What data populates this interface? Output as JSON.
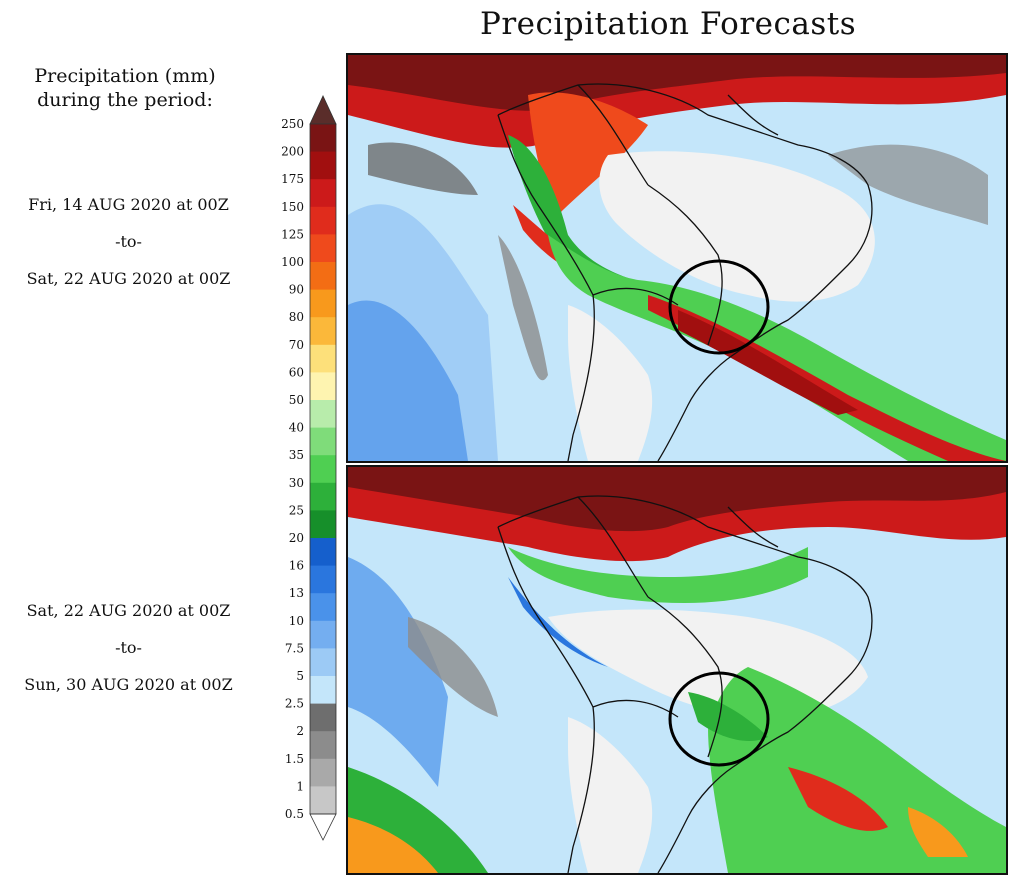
{
  "title": "Precipitation Forecasts",
  "legend": {
    "title_line1": "Precipitation (mm)",
    "title_line2": "during the period:",
    "levels": [
      "250",
      "200",
      "175",
      "150",
      "125",
      "100",
      "90",
      "80",
      "70",
      "60",
      "50",
      "40",
      "35",
      "30",
      "25",
      "20",
      "16",
      "13",
      "10",
      "7.5",
      "5",
      "2.5",
      "2",
      "1.5",
      "1",
      "0.5"
    ],
    "colors": [
      "#5a2d2a",
      "#7a1414",
      "#a10f0f",
      "#cc1a1a",
      "#e02c1c",
      "#ef4a1c",
      "#f36d14",
      "#f8991c",
      "#fbb83a",
      "#fde07a",
      "#fef4b0",
      "#b8ecab",
      "#7fdc7a",
      "#4fcf52",
      "#2db03a",
      "#168f2a",
      "#155fcc",
      "#2a76de",
      "#4a92ea",
      "#74aef0",
      "#9ccaf5",
      "#c4e6fa",
      "#6e6e6e",
      "#8c8c8c",
      "#a9a9a9",
      "#c7c7c7"
    ]
  },
  "periods": [
    {
      "start": "Fri, 14 AUG 2020 at 00Z",
      "sep": "-to-",
      "end": "Sat, 22 AUG 2020 at 00Z"
    },
    {
      "start": "Sat, 22 AUG 2020 at 00Z",
      "sep": "-to-",
      "end": "Sun, 30 AUG 2020 at 00Z"
    }
  ]
}
